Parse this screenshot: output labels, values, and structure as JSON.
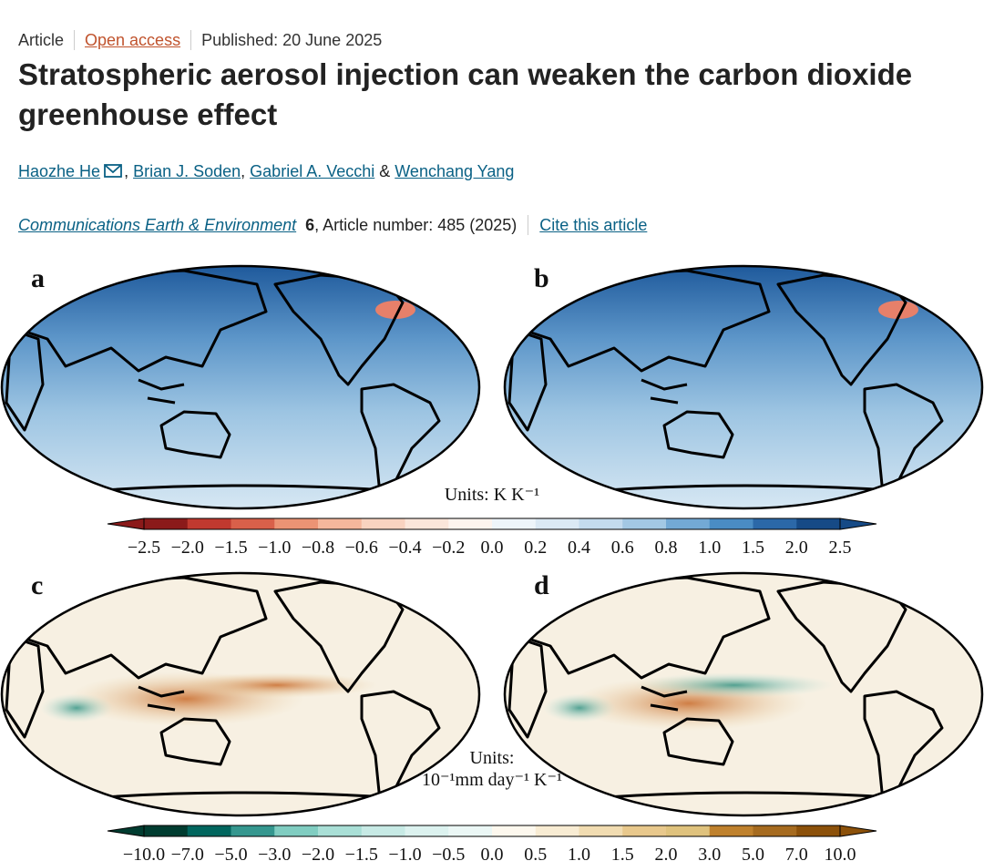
{
  "header": {
    "type": "Article",
    "access": "Open access",
    "published": "Published: 20 June 2025"
  },
  "title": "Stratospheric aerosol injection can weaken the carbon dioxide greenhouse effect",
  "authors": [
    "Haozhe He",
    "Brian J. Soden",
    "Gabriel A. Vecchi",
    "Wenchang Yang"
  ],
  "author_separators": [
    ", ",
    ", ",
    " & "
  ],
  "citation": {
    "journal": "Communications Earth & Environment",
    "volume": "6",
    "article": ", Article number: 485 (2025)",
    "cite": "Cite this article"
  },
  "figure": {
    "panels": [
      "a",
      "b",
      "c",
      "d"
    ],
    "colorbars": [
      {
        "units": [
          "Units: K K⁻¹"
        ],
        "ticks": [
          "−2.5",
          "−2.0",
          "−1.5",
          "−1.0",
          "−0.8",
          "−0.6",
          "−0.4",
          "−0.2",
          "0.0",
          "0.2",
          "0.4",
          "0.6",
          "0.8",
          "1.0",
          "1.5",
          "2.0",
          "2.5"
        ],
        "colors": [
          "#8b1a1a",
          "#c0392f",
          "#d9604a",
          "#ec9374",
          "#f5b79c",
          "#f9d3c0",
          "#fbe6da",
          "#fdf4ee",
          "#eef5fa",
          "#dbe9f4",
          "#c3dbee",
          "#a3c8e4",
          "#73a9d5",
          "#4a8cc4",
          "#2b68a8",
          "#164a86"
        ]
      },
      {
        "units": [
          "Units:",
          "10⁻¹mm day⁻¹ K⁻¹"
        ],
        "ticks": [
          "−10.0",
          "−7.0",
          "−5.0",
          "−3.0",
          "−2.0",
          "−1.5",
          "−1.0",
          "−0.5",
          "0.0",
          "0.5",
          "1.0",
          "1.5",
          "2.0",
          "3.0",
          "5.0",
          "7.0",
          "10.0"
        ],
        "colors": [
          "#003c30",
          "#01665e",
          "#35978f",
          "#80cdc1",
          "#a9dfd6",
          "#c7eae5",
          "#dcf2ef",
          "#ebf7f5",
          "#fdf8ee",
          "#f8ecd3",
          "#f1dcb1",
          "#e8c88c",
          "#dfc27d",
          "#bf812d",
          "#a66b1f",
          "#8c510a"
        ]
      }
    ]
  }
}
